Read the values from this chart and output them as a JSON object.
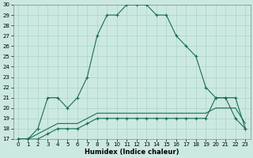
{
  "xlabel": "Humidex (Indice chaleur)",
  "background_color": "#cce9e1",
  "line_color": "#1a6b5a",
  "grid_color": "#aad4c8",
  "xlim": [
    -0.5,
    23.5
  ],
  "ylim": [
    17,
    30
  ],
  "xticks": [
    0,
    1,
    2,
    3,
    4,
    5,
    6,
    7,
    8,
    9,
    10,
    11,
    12,
    13,
    14,
    15,
    16,
    17,
    18,
    19,
    20,
    21,
    22,
    23
  ],
  "yticks": [
    17,
    18,
    19,
    20,
    21,
    22,
    23,
    24,
    25,
    26,
    27,
    28,
    29,
    30
  ],
  "line1_x": [
    0,
    1,
    2,
    3,
    4,
    5,
    6,
    7,
    8,
    9,
    10,
    11,
    12,
    13,
    14,
    15,
    16,
    17,
    18,
    19,
    20,
    21,
    22,
    23
  ],
  "line1_y": [
    17,
    17,
    18,
    21,
    21,
    20,
    21,
    23,
    27,
    29,
    29,
    30,
    30,
    30,
    29,
    29,
    27,
    26,
    25,
    22,
    21,
    21,
    19,
    18
  ],
  "line2_x": [
    0,
    1,
    2,
    3,
    4,
    5,
    6,
    7,
    8,
    9,
    10,
    11,
    12,
    13,
    14,
    15,
    16,
    17,
    18,
    19,
    20,
    21,
    22,
    23
  ],
  "line2_y": [
    17,
    17,
    17.5,
    18,
    18.5,
    18.5,
    18.5,
    19,
    19.5,
    19.5,
    19.5,
    19.5,
    19.5,
    19.5,
    19.5,
    19.5,
    19.5,
    19.5,
    19.5,
    19.5,
    20,
    20,
    20,
    18.5
  ],
  "line3_x": [
    0,
    1,
    2,
    3,
    4,
    5,
    6,
    7,
    8,
    9,
    10,
    11,
    12,
    13,
    14,
    15,
    16,
    17,
    18,
    19,
    20,
    21,
    22,
    23
  ],
  "line3_y": [
    17,
    17,
    17,
    17.5,
    18,
    18,
    18,
    18.5,
    19,
    19,
    19,
    19,
    19,
    19,
    19,
    19,
    19,
    19,
    19,
    19,
    21,
    21,
    21,
    18
  ]
}
